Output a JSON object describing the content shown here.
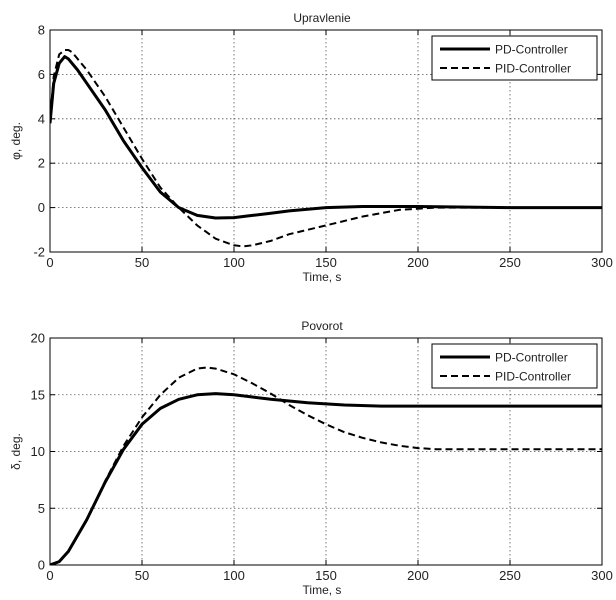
{
  "chart_data": [
    {
      "type": "line",
      "title": "Upravlenie",
      "xlabel": "Time, s",
      "ylabel": "φ, deg.",
      "xlim": [
        0,
        300
      ],
      "ylim": [
        -2,
        8
      ],
      "xticks": [
        0,
        50,
        100,
        150,
        200,
        250,
        300
      ],
      "yticks": [
        -2,
        0,
        2,
        4,
        6,
        8
      ],
      "grid": true,
      "legend": "top-right",
      "series": [
        {
          "name": "PD-Controller",
          "style": "solid",
          "color": "#000000",
          "x": [
            0,
            2,
            5,
            8,
            10,
            15,
            20,
            30,
            40,
            50,
            60,
            70,
            80,
            90,
            100,
            110,
            120,
            130,
            150,
            170,
            200,
            250,
            300
          ],
          "y": [
            3.8,
            5.6,
            6.5,
            6.8,
            6.7,
            6.2,
            5.6,
            4.4,
            3.0,
            1.8,
            0.7,
            0.0,
            -0.35,
            -0.47,
            -0.45,
            -0.35,
            -0.25,
            -0.15,
            0.0,
            0.05,
            0.05,
            0.0,
            0.0
          ]
        },
        {
          "name": "PID-Controller",
          "style": "dashed",
          "color": "#000000",
          "x": [
            0,
            2,
            5,
            8,
            10,
            12,
            15,
            20,
            30,
            40,
            50,
            60,
            70,
            80,
            90,
            100,
            105,
            110,
            120,
            130,
            150,
            170,
            190,
            210,
            250,
            300
          ],
          "y": [
            3.8,
            5.9,
            6.9,
            7.1,
            7.1,
            7.0,
            6.7,
            6.2,
            5.0,
            3.6,
            2.2,
            0.9,
            0.0,
            -0.8,
            -1.4,
            -1.7,
            -1.75,
            -1.7,
            -1.5,
            -1.2,
            -0.8,
            -0.4,
            -0.1,
            0.0,
            0.0,
            0.0
          ]
        }
      ]
    },
    {
      "type": "line",
      "title": "Povorot",
      "xlabel": "Time, s",
      "ylabel": "δ, deg.",
      "xlim": [
        0,
        300
      ],
      "ylim": [
        0,
        20
      ],
      "xticks": [
        0,
        50,
        100,
        150,
        200,
        250,
        300
      ],
      "yticks": [
        0,
        5,
        10,
        15,
        20
      ],
      "grid": true,
      "legend": "top-right",
      "series": [
        {
          "name": "PD-Controller",
          "style": "solid",
          "color": "#000000",
          "x": [
            0,
            5,
            10,
            20,
            30,
            40,
            50,
            60,
            70,
            80,
            90,
            100,
            110,
            120,
            140,
            160,
            180,
            200,
            250,
            300
          ],
          "y": [
            0.0,
            0.3,
            1.2,
            4.0,
            7.3,
            10.2,
            12.4,
            13.8,
            14.6,
            15.0,
            15.1,
            15.0,
            14.8,
            14.6,
            14.3,
            14.1,
            14.0,
            14.0,
            14.0,
            14.0
          ]
        },
        {
          "name": "PID-Controller",
          "style": "dashed",
          "color": "#000000",
          "x": [
            0,
            5,
            10,
            20,
            30,
            40,
            50,
            60,
            70,
            80,
            85,
            90,
            100,
            110,
            120,
            130,
            140,
            150,
            160,
            170,
            180,
            190,
            200,
            210,
            220,
            250,
            300
          ],
          "y": [
            0.0,
            0.3,
            1.2,
            4.0,
            7.4,
            10.5,
            13.0,
            15.0,
            16.5,
            17.3,
            17.4,
            17.3,
            16.8,
            16.0,
            15.1,
            14.1,
            13.2,
            12.4,
            11.7,
            11.2,
            10.8,
            10.5,
            10.3,
            10.2,
            10.2,
            10.2,
            10.2
          ]
        }
      ]
    }
  ]
}
